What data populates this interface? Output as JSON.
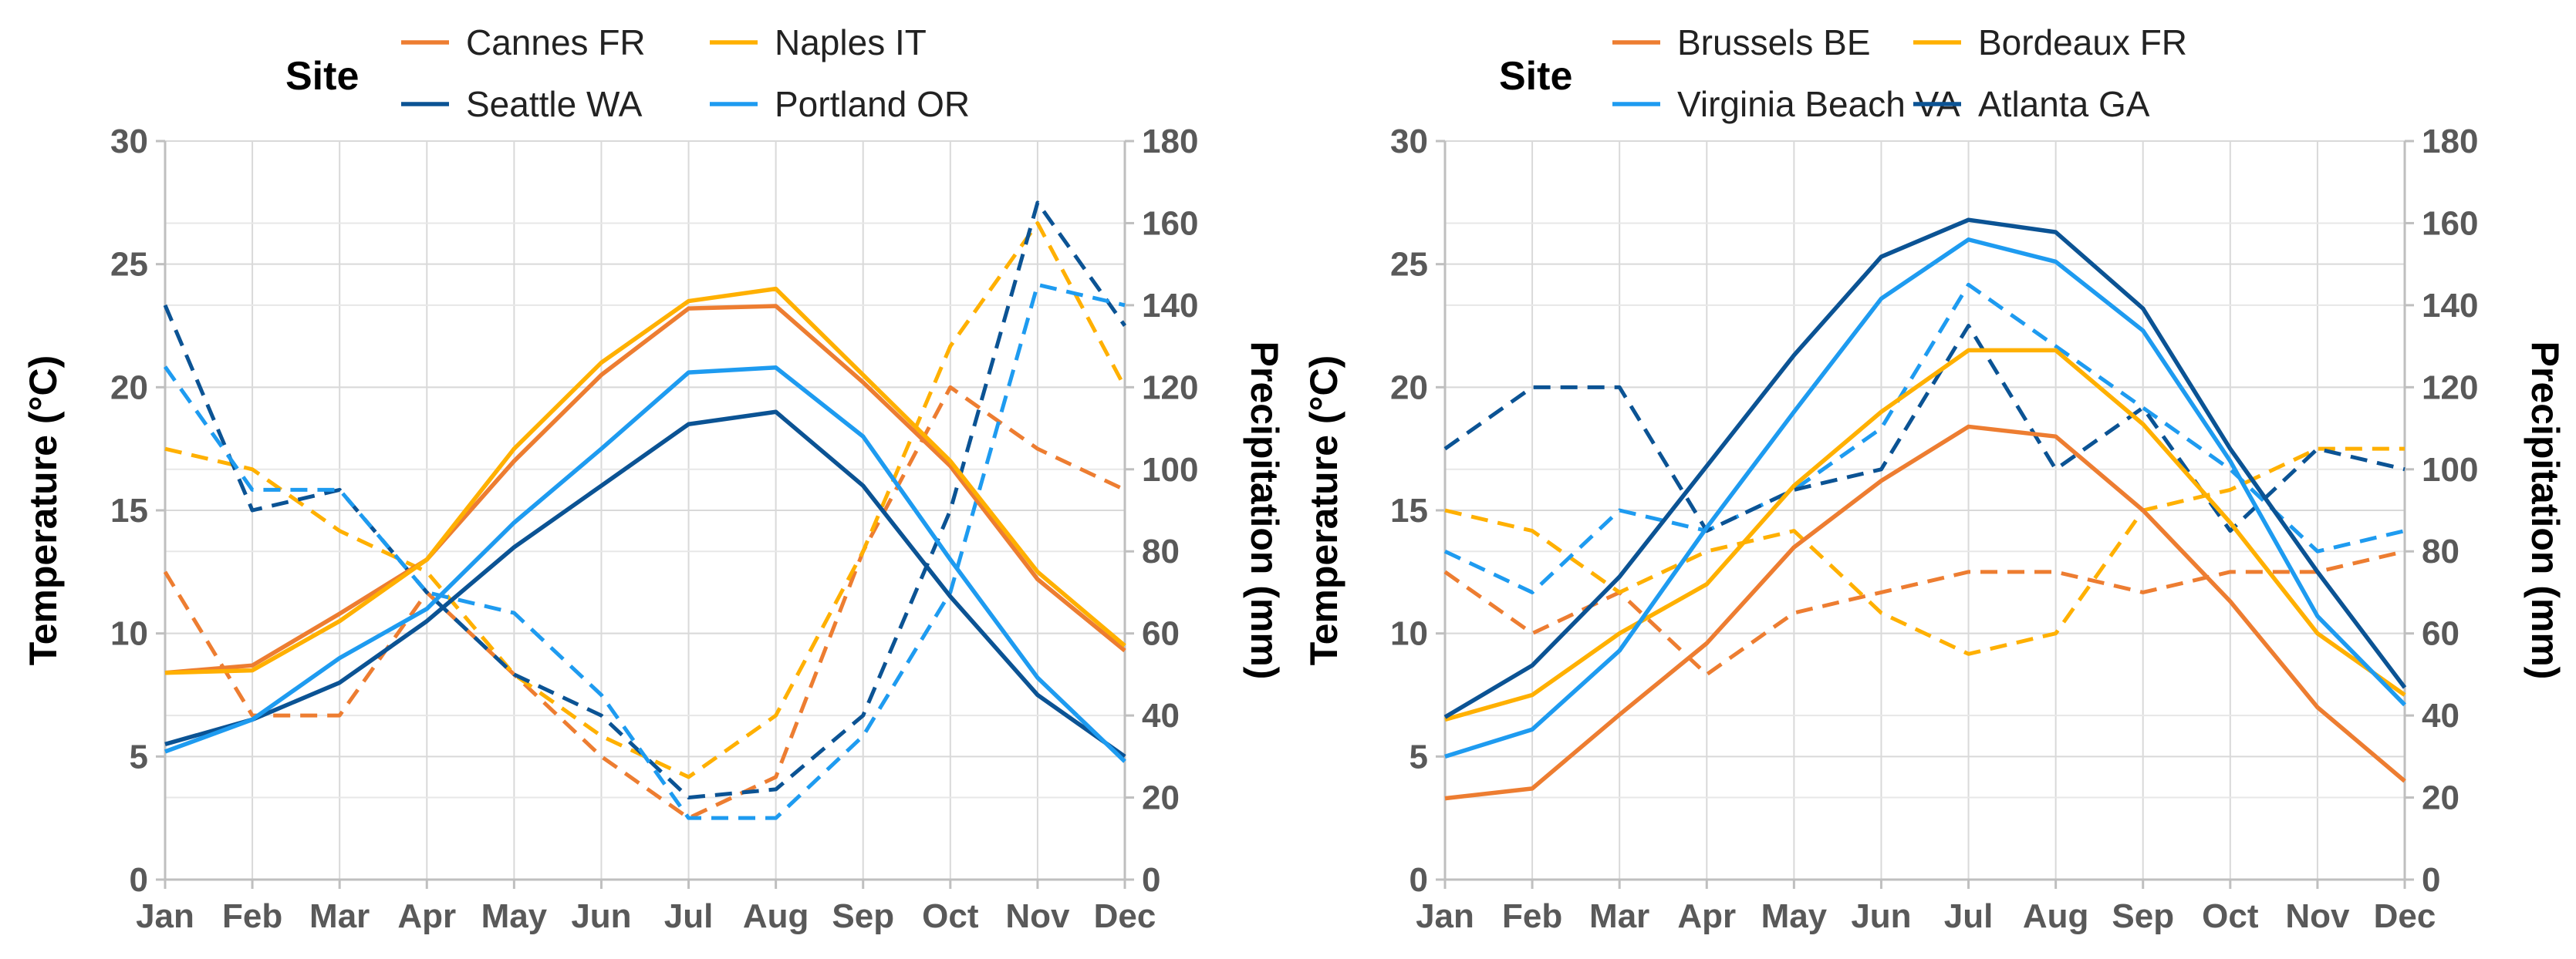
{
  "chart_data": [
    {
      "type": "line",
      "title": "",
      "legend_title": "Site",
      "xlabel": "",
      "ylabel": "Temperature (°C)",
      "y2label": "Precipitation (mm)",
      "categories": [
        "Jan",
        "Feb",
        "Mar",
        "Apr",
        "May",
        "Jun",
        "Jul",
        "Aug",
        "Sep",
        "Oct",
        "Nov",
        "Dec"
      ],
      "ylim": [
        0,
        30
      ],
      "y2lim": [
        0,
        180
      ],
      "yticks": [
        "0",
        "5",
        "10",
        "15",
        "20",
        "25",
        "30"
      ],
      "y2ticks": [
        "0",
        "20",
        "40",
        "60",
        "80",
        "100",
        "120",
        "140",
        "160",
        "180"
      ],
      "grid": true,
      "legend_position": "top",
      "series": [
        {
          "name": "Cannes FR",
          "color": "#ED7D31",
          "temperature": [
            8.4,
            8.7,
            10.8,
            13.0,
            17.0,
            20.5,
            23.2,
            23.3,
            20.2,
            16.8,
            12.2,
            9.3
          ],
          "precipitation": [
            75,
            40,
            40,
            70,
            50,
            30,
            15,
            25,
            80,
            120,
            105,
            95
          ]
        },
        {
          "name": "Naples IT",
          "color": "#FFB000",
          "temperature": [
            8.4,
            8.5,
            10.5,
            13.0,
            17.5,
            21.0,
            23.5,
            24.0,
            20.5,
            17.0,
            12.5,
            9.5
          ],
          "precipitation": [
            105,
            100,
            85,
            75,
            50,
            35,
            25,
            40,
            80,
            130,
            160,
            120
          ]
        },
        {
          "name": "Seattle WA",
          "color": "#0B5394",
          "temperature": [
            5.5,
            6.5,
            8.0,
            10.5,
            13.5,
            16.0,
            18.5,
            19.0,
            16.0,
            11.5,
            7.5,
            5.0
          ],
          "precipitation": [
            140,
            90,
            95,
            70,
            50,
            40,
            20,
            22,
            40,
            90,
            165,
            135
          ]
        },
        {
          "name": "Portland OR",
          "color": "#1E9BF0",
          "temperature": [
            5.2,
            6.5,
            9.0,
            11.0,
            14.5,
            17.5,
            20.6,
            20.8,
            18.0,
            13.0,
            8.2,
            4.8
          ],
          "precipitation": [
            125,
            95,
            95,
            70,
            65,
            45,
            15,
            15,
            35,
            70,
            145,
            140
          ]
        }
      ]
    },
    {
      "type": "line",
      "title": "",
      "legend_title": "Site",
      "xlabel": "",
      "ylabel": "Temperature (°C)",
      "y2label": "Precipitation (mm)",
      "categories": [
        "Jan",
        "Feb",
        "Mar",
        "Apr",
        "May",
        "Jun",
        "Jul",
        "Aug",
        "Sep",
        "Oct",
        "Nov",
        "Dec"
      ],
      "ylim": [
        0,
        30
      ],
      "y2lim": [
        0,
        180
      ],
      "yticks": [
        "0",
        "5",
        "10",
        "15",
        "20",
        "25",
        "30"
      ],
      "y2ticks": [
        "0",
        "20",
        "40",
        "60",
        "80",
        "100",
        "120",
        "140",
        "160",
        "180"
      ],
      "grid": true,
      "legend_position": "top",
      "series": [
        {
          "name": "Brussels BE",
          "color": "#ED7D31",
          "temperature": [
            3.3,
            3.7,
            6.7,
            9.6,
            13.5,
            16.2,
            18.4,
            18.0,
            15.0,
            11.3,
            7.0,
            4.0
          ],
          "precipitation": [
            75,
            60,
            70,
            50,
            65,
            70,
            75,
            75,
            70,
            75,
            75,
            80
          ]
        },
        {
          "name": "Bordeaux FR",
          "color": "#FFB000",
          "temperature": [
            6.5,
            7.5,
            10.0,
            12.0,
            16.0,
            19.0,
            21.5,
            21.5,
            18.5,
            14.5,
            10.0,
            7.5
          ],
          "precipitation": [
            90,
            85,
            70,
            80,
            85,
            65,
            55,
            60,
            90,
            95,
            105,
            105
          ]
        },
        {
          "name": "Virginia Beach VA",
          "color": "#1E9BF0",
          "temperature": [
            5.0,
            6.1,
            9.3,
            14.3,
            19.0,
            23.6,
            26.0,
            25.1,
            22.3,
            17.0,
            10.7,
            7.1
          ],
          "precipitation": [
            80,
            70,
            90,
            85,
            95,
            110,
            145,
            130,
            115,
            100,
            80,
            85
          ]
        },
        {
          "name": "Atlanta GA",
          "color": "#0B5394",
          "temperature": [
            6.6,
            8.7,
            12.3,
            16.8,
            21.3,
            25.3,
            26.8,
            26.3,
            23.2,
            17.5,
            12.5,
            7.8
          ],
          "precipitation": [
            105,
            120,
            120,
            85,
            95,
            100,
            135,
            100,
            115,
            85,
            105,
            100
          ]
        }
      ]
    }
  ]
}
